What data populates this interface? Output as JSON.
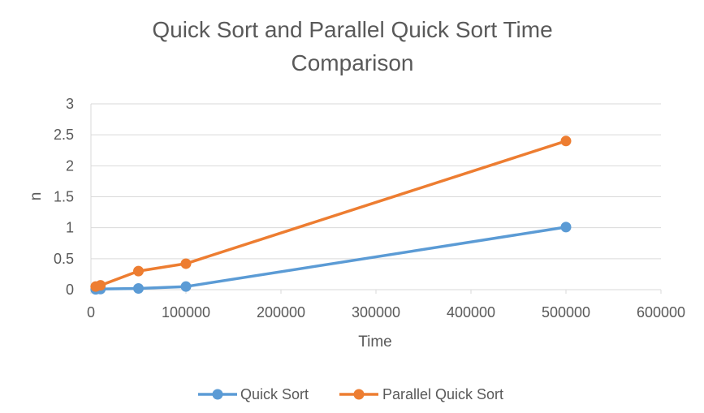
{
  "chart_data": {
    "type": "scatter",
    "title_lines": [
      "Quick Sort and Parallel Quick Sort Time",
      "Comparison"
    ],
    "xlabel": "Time",
    "ylabel": "n",
    "xlim": [
      0,
      600000
    ],
    "ylim": [
      0,
      3
    ],
    "x_ticks": [
      "0",
      "100000",
      "200000",
      "300000",
      "400000",
      "500000",
      "600000"
    ],
    "y_ticks": [
      "0",
      "0.5",
      "1",
      "1.5",
      "2",
      "2.5",
      "3"
    ],
    "grid": "horizontal",
    "legend_position": "bottom",
    "series": [
      {
        "name": "Quick Sort",
        "color": "#5b9bd5",
        "x": [
          5000,
          10000,
          50000,
          100000,
          500000
        ],
        "y": [
          0.005,
          0.01,
          0.02,
          0.05,
          1.01
        ]
      },
      {
        "name": "Parallel Quick Sort",
        "color": "#ed7d31",
        "x": [
          5000,
          10000,
          50000,
          100000,
          500000
        ],
        "y": [
          0.05,
          0.07,
          0.3,
          0.42,
          2.4
        ]
      }
    ]
  }
}
